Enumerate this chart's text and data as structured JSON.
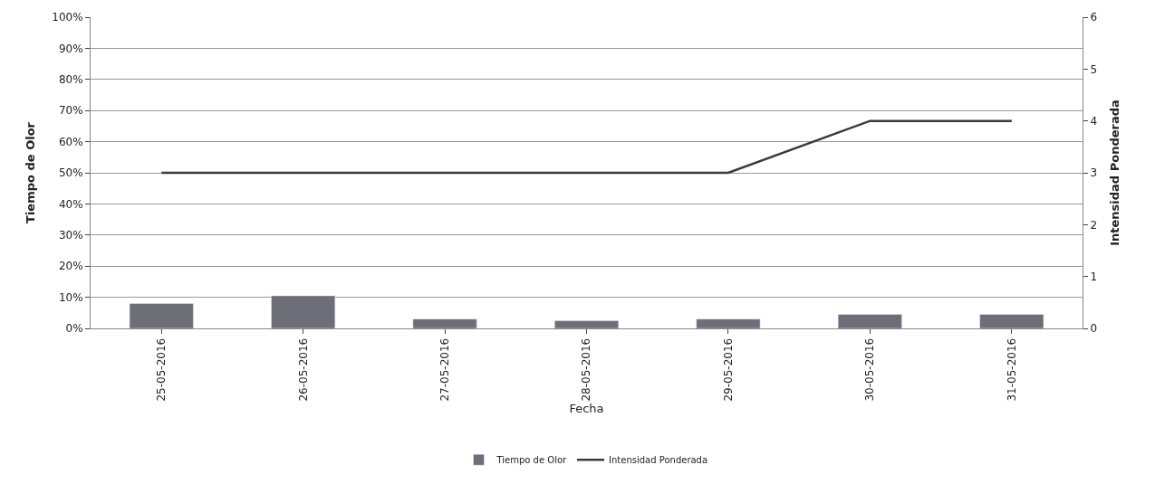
{
  "chart_data": {
    "type": "bar",
    "xlabel": "Fecha",
    "ylabel": "Tiempo de Olor",
    "y2label": "Intensidad Ponderada",
    "categories": [
      "25-05-2016",
      "26-05-2016",
      "27-05-2016",
      "28-05-2016",
      "29-05-2016",
      "30-05-2016",
      "31-05-2016"
    ],
    "series": [
      {
        "name": "Tiempo de Olor",
        "color": "#6e6e78",
        "values": [
          8,
          10.5,
          3,
          2.5,
          3,
          4.5,
          4.5
        ]
      },
      {
        "name": "Intensidad Ponderada",
        "type": "line",
        "axis": "y2",
        "color": "#3a3a3a",
        "values": [
          3,
          3,
          3,
          3,
          3,
          4,
          4
        ]
      }
    ],
    "ylim": [
      0,
      100
    ],
    "yticks": [
      {
        "value": 0,
        "label": "0%"
      },
      {
        "value": 10,
        "label": "10%"
      },
      {
        "value": 20,
        "label": "20%"
      },
      {
        "value": 30,
        "label": "30%"
      },
      {
        "value": 40,
        "label": "40%"
      },
      {
        "value": 50,
        "label": "50%"
      },
      {
        "value": 60,
        "label": "60%"
      },
      {
        "value": 70,
        "label": "70%"
      },
      {
        "value": 80,
        "label": "80%"
      },
      {
        "value": 90,
        "label": "90%"
      },
      {
        "value": 100,
        "label": "100%"
      }
    ],
    "y2lim": [
      0,
      6
    ],
    "y2ticks": [
      0,
      1,
      2,
      3,
      4,
      5,
      6
    ],
    "grid": "y",
    "legend": "bottom",
    "marker": "none",
    "line_style": "solid"
  }
}
